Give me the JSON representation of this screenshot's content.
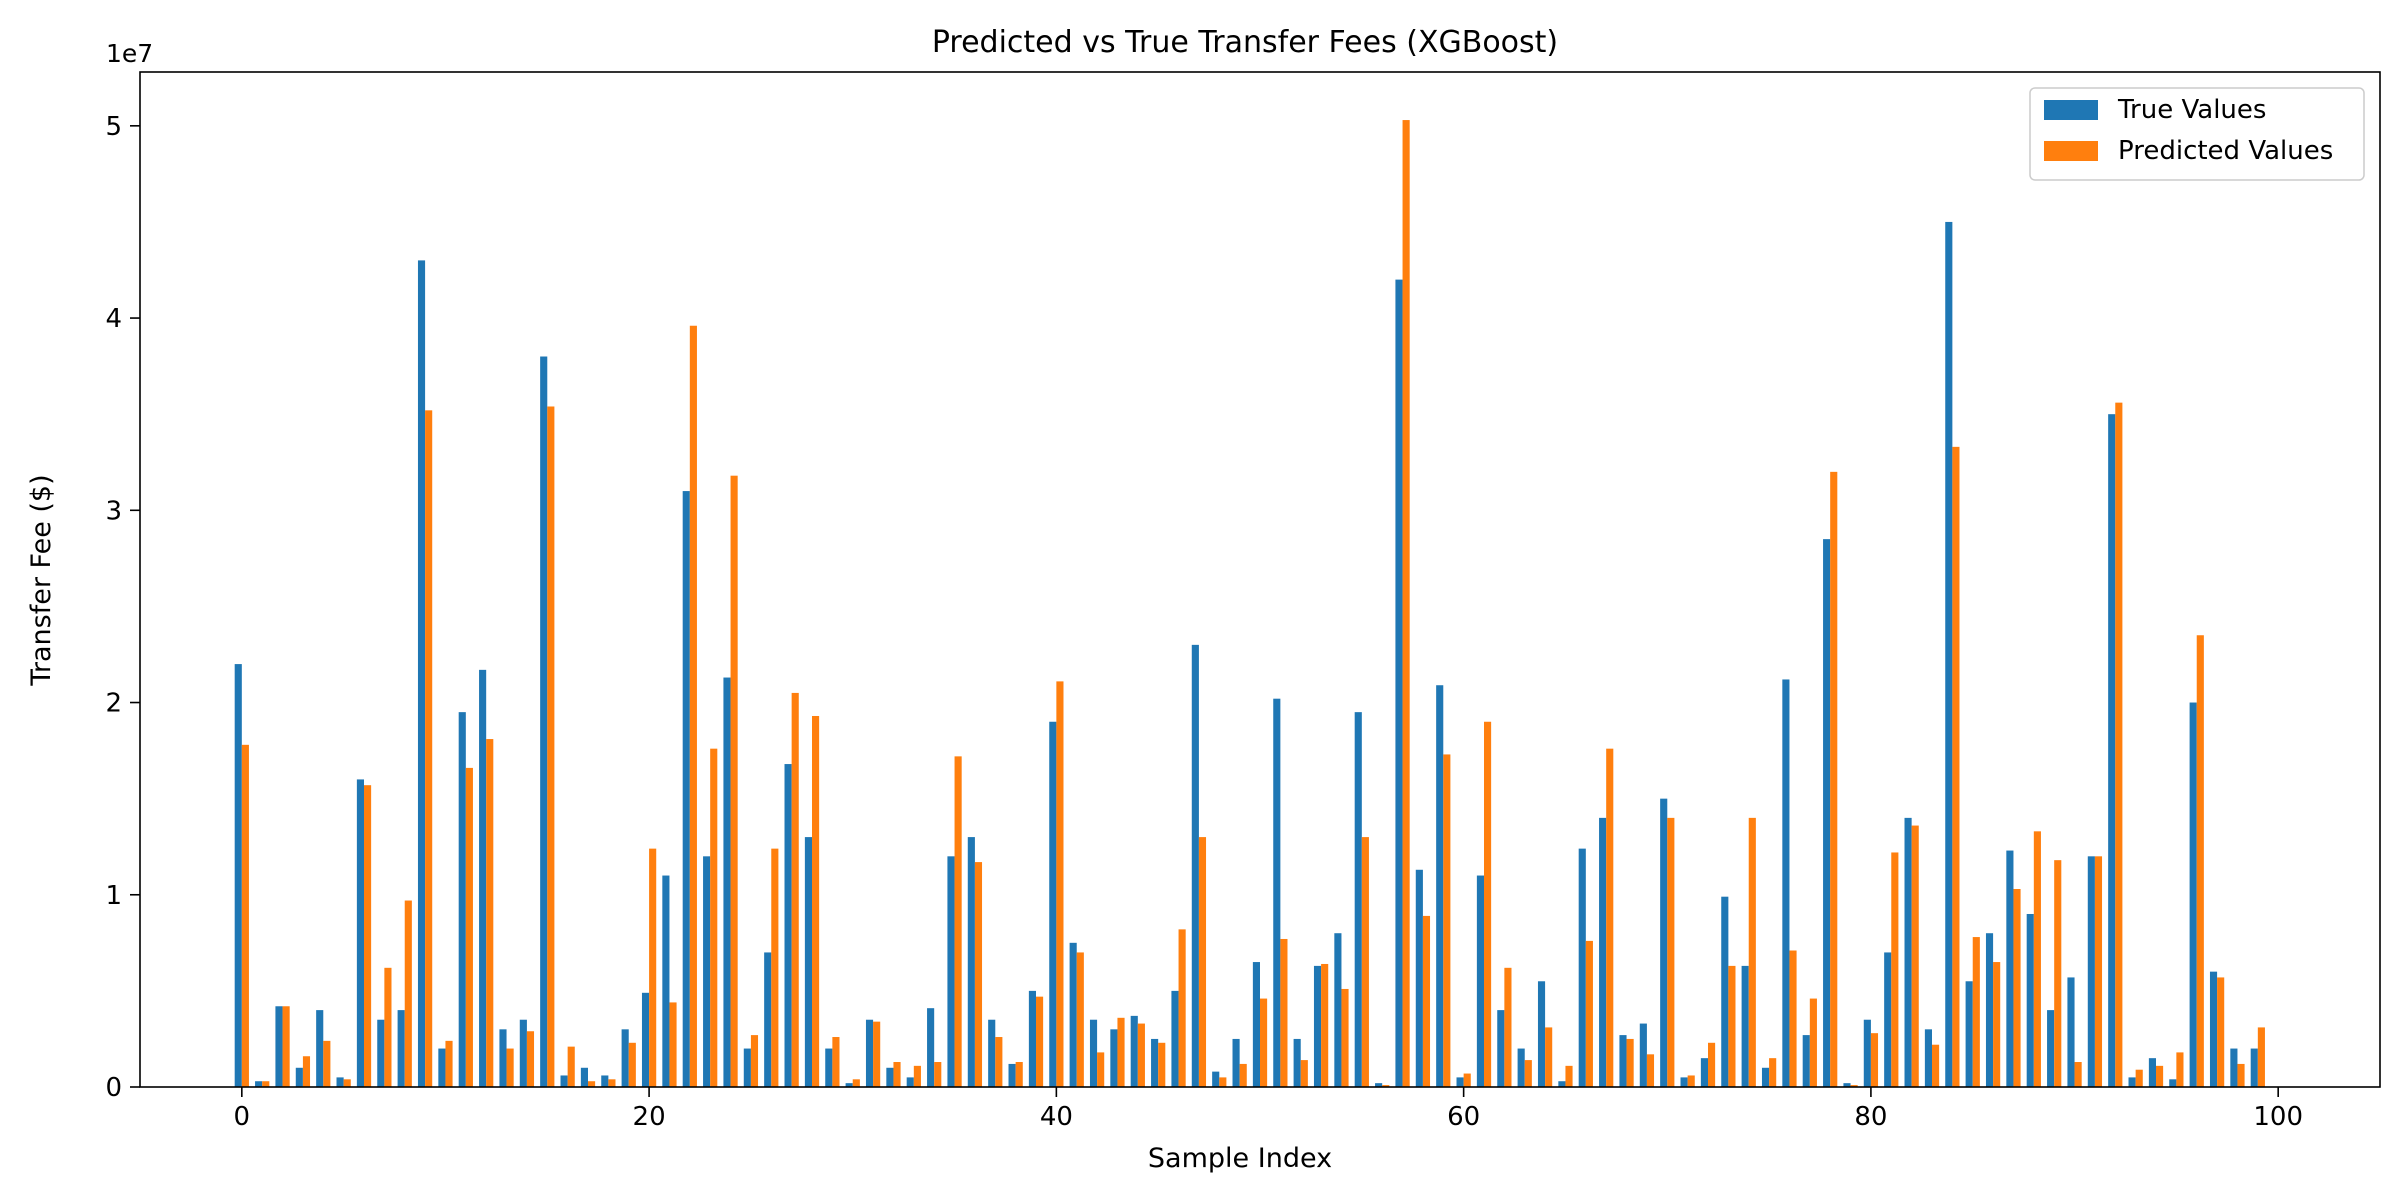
{
  "chart_data": {
    "type": "bar",
    "title": "Predicted vs True Transfer Fees (XGBoost)",
    "xlabel": "Sample Index",
    "ylabel": "Transfer Fee ($)",
    "y_offset_label": "1e7",
    "xlim": [
      -5,
      105
    ],
    "ylim": [
      0,
      52.8
    ],
    "x_ticks": [
      0,
      20,
      40,
      60,
      80,
      100
    ],
    "y_ticks": [
      0,
      1,
      2,
      3,
      4,
      5
    ],
    "grid": false,
    "legend_position": "top-right",
    "x": [
      0,
      1,
      2,
      3,
      4,
      5,
      6,
      7,
      8,
      9,
      10,
      11,
      12,
      13,
      14,
      15,
      16,
      17,
      18,
      19,
      20,
      21,
      22,
      23,
      24,
      25,
      26,
      27,
      28,
      29,
      30,
      31,
      32,
      33,
      34,
      35,
      36,
      37,
      38,
      39,
      40,
      41,
      42,
      43,
      44,
      45,
      46,
      47,
      48,
      49,
      50,
      51,
      52,
      53,
      54,
      55,
      56,
      57,
      58,
      59,
      60,
      61,
      62,
      63,
      64,
      65,
      66,
      67,
      68,
      69,
      70,
      71,
      72,
      73,
      74,
      75,
      76,
      77,
      78,
      79,
      80,
      81,
      82,
      83,
      84,
      85,
      86,
      87,
      88,
      89,
      90,
      91,
      92,
      93,
      94,
      95,
      96,
      97,
      98,
      99
    ],
    "series": [
      {
        "name": "True Values",
        "color": "#1f77b4",
        "values": [
          22.0,
          0.3,
          4.2,
          1.0,
          4.0,
          0.5,
          16.0,
          3.5,
          4.0,
          43.0,
          2.0,
          19.5,
          21.7,
          3.0,
          3.5,
          38.0,
          0.6,
          1.0,
          0.6,
          3.0,
          4.9,
          11.0,
          31.0,
          12.0,
          21.3,
          2.0,
          7.0,
          16.8,
          13.0,
          2.0,
          0.2,
          3.5,
          1.0,
          0.5,
          4.1,
          12.0,
          13.0,
          3.5,
          1.2,
          5.0,
          19.0,
          7.5,
          3.5,
          3.0,
          3.7,
          2.5,
          5.0,
          23.0,
          0.8,
          2.5,
          6.5,
          20.2,
          2.5,
          6.3,
          8.0,
          19.5,
          0.2,
          42.0,
          11.3,
          20.9,
          0.5,
          11.0,
          4.0,
          2.0,
          5.5,
          0.3,
          12.4,
          14.0,
          2.7,
          3.3,
          15.0,
          0.5,
          1.5,
          9.9,
          6.3,
          1.0,
          21.2,
          2.7,
          28.5,
          0.2,
          3.5,
          7.0,
          14.0,
          3.0,
          45.0,
          5.5,
          8.0,
          12.3,
          9.0,
          4.0,
          5.7,
          12.0,
          35.0,
          0.5,
          1.5,
          0.4,
          20.0,
          6.0,
          2.0,
          2.0
        ]
      },
      {
        "name": "Predicted Values",
        "color": "#ff7f0e",
        "values": [
          17.8,
          0.3,
          4.2,
          1.6,
          2.4,
          0.4,
          15.7,
          6.2,
          9.7,
          35.2,
          2.4,
          16.6,
          18.1,
          2.0,
          2.9,
          35.4,
          2.1,
          0.3,
          0.4,
          2.3,
          12.4,
          4.4,
          39.6,
          17.6,
          31.8,
          2.7,
          12.4,
          20.5,
          19.3,
          2.6,
          0.4,
          3.4,
          1.3,
          1.1,
          1.3,
          17.2,
          11.7,
          2.6,
          1.3,
          4.7,
          21.1,
          7.0,
          1.8,
          3.6,
          3.3,
          2.3,
          8.2,
          13.0,
          0.5,
          1.2,
          4.6,
          7.7,
          1.4,
          6.4,
          5.1,
          13.0,
          0.1,
          50.3,
          8.9,
          17.3,
          0.7,
          19.0,
          6.2,
          1.4,
          3.1,
          1.1,
          7.6,
          17.6,
          2.5,
          1.7,
          14.0,
          0.6,
          2.3,
          6.3,
          14.0,
          1.5,
          7.1,
          4.6,
          32.0,
          0.1,
          2.8,
          12.2,
          13.6,
          2.2,
          33.3,
          7.8,
          6.5,
          10.3,
          13.3,
          11.8,
          1.3,
          12.0,
          35.6,
          0.9,
          1.1,
          1.8,
          23.5,
          5.7,
          1.2,
          3.1
        ]
      }
    ]
  }
}
